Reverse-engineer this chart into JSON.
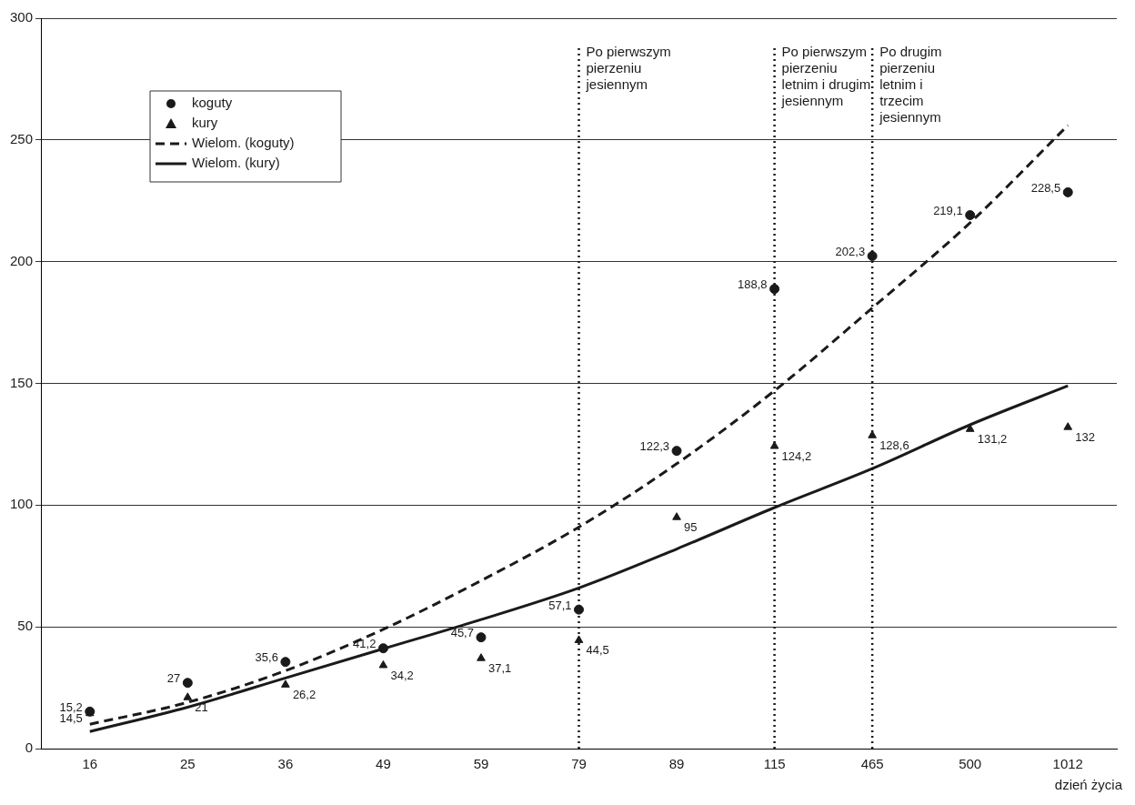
{
  "chart_data": {
    "type": "scatter",
    "xlabel": "dzień życia",
    "categories": [
      "16",
      "25",
      "36",
      "49",
      "59",
      "79",
      "89",
      "115",
      "465",
      "500",
      "1012"
    ],
    "ylim": [
      0,
      300
    ],
    "yticks": [
      0,
      50,
      100,
      150,
      200,
      250,
      300
    ],
    "grid": "y",
    "legend": "top left",
    "series": [
      {
        "name": "koguty",
        "marker": "circle",
        "color": "#1a1a1a",
        "values": [
          15.2,
          27,
          35.6,
          41.2,
          45.7,
          57.1,
          122.3,
          188.8,
          202.3,
          219.1,
          228.5
        ],
        "value_labels": [
          "15,2",
          "27",
          "35,6",
          "41,2",
          "45,7",
          "57,1",
          "122,3",
          "188,8",
          "202,3",
          "219,1",
          "228,5"
        ]
      },
      {
        "name": "kury",
        "marker": "triangle",
        "color": "#1a1a1a",
        "values": [
          14.5,
          21,
          26.2,
          34.2,
          37.1,
          44.5,
          95,
          124.2,
          128.6,
          131.2,
          132
        ],
        "value_labels": [
          "14,5",
          "21",
          "26,2",
          "34,2",
          "37,1",
          "44,5",
          "95",
          "124,2",
          "128,6",
          "131,2",
          "132"
        ]
      },
      {
        "name": "Wielom. (koguty)",
        "type": "line",
        "line_style": "dashed",
        "marker": "none",
        "color": "#1a1a1a",
        "values": [
          10,
          19,
          32,
          49,
          69,
          91,
          117,
          147,
          181,
          216,
          256
        ]
      },
      {
        "name": "Wielom. (kury)",
        "type": "line",
        "line_style": "solid",
        "marker": "none",
        "color": "#1a1a1a",
        "values": [
          7,
          17,
          29,
          41,
          53,
          66,
          82,
          99,
          115,
          133,
          149
        ]
      }
    ],
    "ref_lines": [
      {
        "axis": "x",
        "value": "79",
        "label": "Po pierwszym pierzeniu jesiennym",
        "line_style": "dotted",
        "color": "#1a1a1a"
      },
      {
        "axis": "x",
        "value": "115",
        "label": "Po pierwszym pierzeniu letnim i drugim jesiennym",
        "line_style": "dotted",
        "color": "#1a1a1a"
      },
      {
        "axis": "x",
        "value": "465",
        "label": "Po drugim pierzeniu letnim i trzecim jesiennym",
        "line_style": "dotted",
        "color": "#1a1a1a"
      }
    ]
  }
}
